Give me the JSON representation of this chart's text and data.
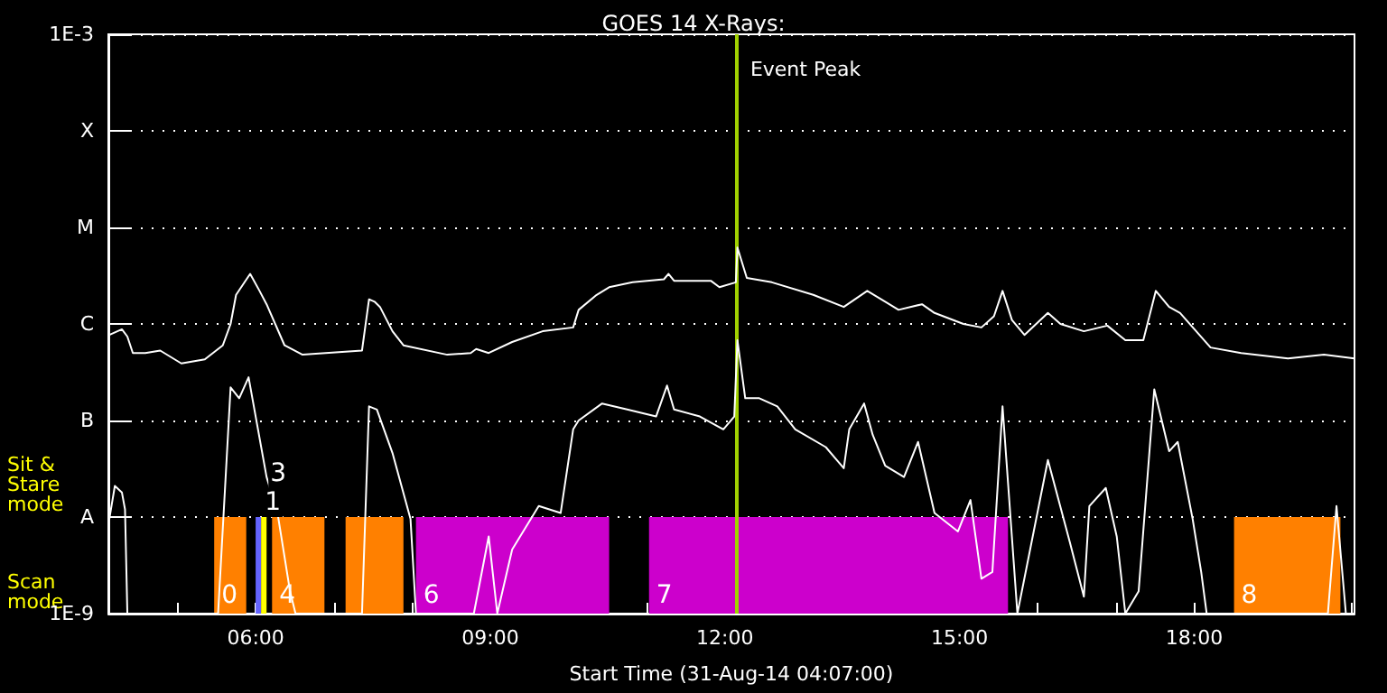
{
  "chart_data": {
    "type": "line",
    "title": "GOES 14 X-Rays:",
    "xlabel": "Start Time (31-Aug-14 04:07:00)",
    "annotations": [
      "Sit & Stare mode",
      "Scan mode"
    ],
    "log": "y",
    "grid": "y",
    "marker": "none",
    "line_style": "solid",
    "xlim": [
      4.117,
      20.05
    ],
    "xticks": [
      {
        "value": 5,
        "label": null
      },
      {
        "value": 6,
        "label": "06:00"
      },
      {
        "value": 7,
        "label": null
      },
      {
        "value": 8,
        "label": null
      },
      {
        "value": 9,
        "label": "09:00"
      },
      {
        "value": 10,
        "label": null
      },
      {
        "value": 11,
        "label": null
      },
      {
        "value": 12,
        "label": "12:00"
      },
      {
        "value": 13,
        "label": null
      },
      {
        "value": 14,
        "label": null
      },
      {
        "value": 15,
        "label": "15:00"
      },
      {
        "value": 16,
        "label": null
      },
      {
        "value": 17,
        "label": null
      },
      {
        "value": 18,
        "label": "18:00"
      },
      {
        "value": 19,
        "label": null
      },
      {
        "value": 20,
        "label": null
      }
    ],
    "ylim": [
      1e-09,
      0.001
    ],
    "yticks": [
      {
        "value": 1e-09,
        "label": "1E-9"
      },
      {
        "value": 1e-08,
        "label": "A"
      },
      {
        "value": 1e-07,
        "label": "B"
      },
      {
        "value": 1e-06,
        "label": "C"
      },
      {
        "value": 1e-05,
        "label": "M"
      },
      {
        "value": 0.0001,
        "label": "X"
      },
      {
        "value": 0.001,
        "label": "1E-3"
      }
    ],
    "ref_lines": [
      {
        "axis": "x",
        "value": 12.14,
        "label": "Event Peak",
        "color": "#a0d000"
      }
    ],
    "bands": [
      {
        "axis": "x",
        "from": 5.47,
        "to": 5.88,
        "label": "0",
        "color": "#ff8000"
      },
      {
        "axis": "x",
        "from": 6.0,
        "to": 6.07,
        "label": "1",
        "color": "#6464ff"
      },
      {
        "axis": "x",
        "from": 6.07,
        "to": 6.14,
        "label": "3",
        "color": "#ffff00"
      },
      {
        "axis": "x",
        "from": 6.21,
        "to": 6.88,
        "label": "4",
        "color": "#ff8000"
      },
      {
        "axis": "x",
        "from": 7.15,
        "to": 7.89,
        "color": "#ff8000"
      },
      {
        "axis": "x",
        "from": 8.05,
        "to": 10.52,
        "label": "6",
        "color": "#cc00cc"
      },
      {
        "axis": "x",
        "from": 11.03,
        "to": 15.62,
        "label": "7",
        "color": "#cc00cc"
      },
      {
        "axis": "x",
        "from": 18.51,
        "to": 19.87,
        "label": "8",
        "color": "#ff8000"
      }
    ],
    "series": [
      {
        "color": "#ffffff",
        "x": [
          4.13,
          4.29,
          4.36,
          4.43,
          4.59,
          4.78,
          5.05,
          5.35,
          5.58,
          5.68,
          5.75,
          5.93,
          6.05,
          6.14,
          6.37,
          6.6,
          7.36,
          7.45,
          7.52,
          7.59,
          7.75,
          7.89,
          8.45,
          8.75,
          8.82,
          8.98,
          9.28,
          9.67,
          10.06,
          10.13,
          10.36,
          10.52,
          10.82,
          11.22,
          11.28,
          11.35,
          11.82,
          11.93,
          12.14,
          12.16,
          12.28,
          12.6,
          13.13,
          13.52,
          13.82,
          14.05,
          14.22,
          14.52,
          14.68,
          15.05,
          15.28,
          15.44,
          15.55,
          15.67,
          15.83,
          16.13,
          16.29,
          16.59,
          16.89,
          17.12,
          17.35,
          17.51,
          17.68,
          17.82,
          18.21,
          18.6,
          19.2,
          19.66,
          20.05
        ],
        "values": [
          7.7e-07,
          8.8e-07,
          7.4e-07,
          5e-07,
          5e-07,
          5.3e-07,
          3.9e-07,
          4.3e-07,
          6e-07,
          1e-06,
          2e-06,
          3.3e-06,
          2.2e-06,
          1.6e-06,
          6e-07,
          4.8e-07,
          5.3e-07,
          1.8e-06,
          1.7e-06,
          1.5e-06,
          8.4e-07,
          6e-07,
          4.8e-07,
          5e-07,
          5.5e-07,
          5e-07,
          6.5e-07,
          8.4e-07,
          9.2e-07,
          1.4e-06,
          2e-06,
          2.4e-06,
          2.7e-06,
          2.9e-06,
          3.3e-06,
          2.8e-06,
          2.8e-06,
          2.4e-06,
          2.7e-06,
          6.2e-06,
          3e-06,
          2.7e-06,
          2e-06,
          1.5e-06,
          2.2e-06,
          1.7e-06,
          1.4e-06,
          1.6e-06,
          1.3e-06,
          1e-06,
          9.2e-07,
          1.2e-06,
          2.2e-06,
          1.1e-06,
          7.7e-07,
          1.3e-06,
          1e-06,
          8.4e-07,
          9.6e-07,
          6.8e-07,
          6.8e-07,
          2.2e-06,
          1.5e-06,
          1.3e-06,
          5.7e-07,
          5e-07,
          4.4e-07,
          4.8e-07,
          4.4e-07
        ]
      },
      {
        "color": "#ffffff",
        "x": [
          4.13,
          4.2,
          4.29,
          4.33,
          4.36,
          5.52,
          5.68,
          5.79,
          5.91,
          6.14,
          6.28,
          6.44,
          6.51,
          7.36,
          7.45,
          7.55,
          7.75,
          7.98,
          8.05,
          8.79,
          8.98,
          9.09,
          9.28,
          9.62,
          9.9,
          10.06,
          10.13,
          10.43,
          10.75,
          11.12,
          11.26,
          11.35,
          11.68,
          11.98,
          12.12,
          12.16,
          12.26,
          12.44,
          12.67,
          12.9,
          13.29,
          13.52,
          13.59,
          13.78,
          13.89,
          14.05,
          14.29,
          14.47,
          14.68,
          14.98,
          15.14,
          15.28,
          15.42,
          15.55,
          15.74,
          16.13,
          16.41,
          16.59,
          16.66,
          16.87,
          17.01,
          17.12,
          17.29,
          17.49,
          17.68,
          17.79,
          17.98,
          18.09,
          18.16,
          19.71,
          19.82,
          19.94,
          20.05
        ],
        "values": [
          9.6e-09,
          2.1e-08,
          1.8e-08,
          1.2e-08,
          1e-09,
          1e-09,
          2.2e-07,
          1.7e-07,
          2.8e-07,
          2.6e-08,
          1.1e-08,
          1.7e-09,
          1e-09,
          1e-09,
          1.4e-07,
          1.3e-07,
          4.6e-08,
          9.6e-09,
          1e-09,
          1e-09,
          6.3e-09,
          1e-09,
          4.6e-09,
          1.3e-08,
          1.1e-08,
          8.1e-08,
          1e-07,
          1.5e-07,
          1.3e-07,
          1.1e-07,
          2.3e-07,
          1.3e-07,
          1.1e-07,
          8.1e-08,
          1.1e-07,
          6.8e-07,
          1.7e-07,
          1.7e-07,
          1.4e-07,
          8.1e-08,
          5.3e-08,
          3.2e-08,
          8.1e-08,
          1.5e-07,
          7.1e-08,
          3.4e-08,
          2.6e-08,
          6e-08,
          1.1e-08,
          7.1e-09,
          1.5e-08,
          2.3e-09,
          2.7e-09,
          1.4e-07,
          1e-09,
          3.9e-08,
          5.5e-09,
          1.5e-09,
          1.3e-08,
          2e-08,
          6.3e-09,
          1e-09,
          1.7e-09,
          2.1e-07,
          4.8e-08,
          6e-08,
          9.6e-09,
          2.7e-09,
          1e-09,
          1e-09,
          1.3e-08,
          1e-09,
          1e-09
        ]
      }
    ]
  }
}
